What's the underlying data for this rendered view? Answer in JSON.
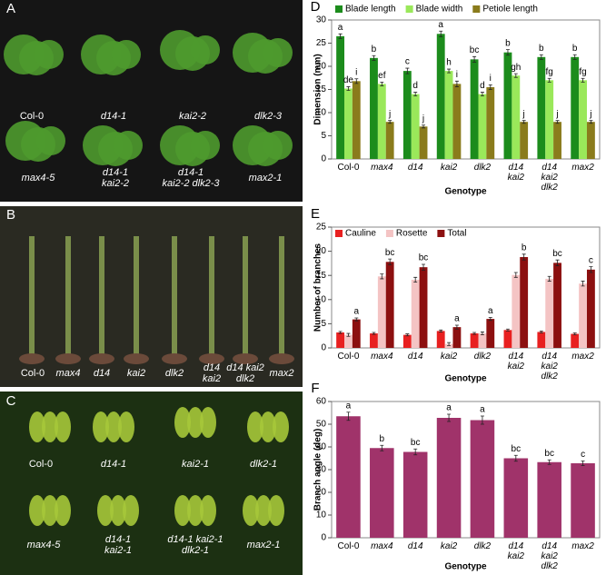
{
  "photos": [
    {
      "letter": "A",
      "labels": [
        "Col-0",
        "d14-1",
        "kai2-2",
        "dlk2-3",
        "max4-5",
        "d14-1\nkai2-2",
        "d14-1\nkai2-2 dlk2-3",
        "max2-1"
      ]
    },
    {
      "letter": "B",
      "labels": [
        "Col-0",
        "max4",
        "d14",
        "kai2",
        "dlk2",
        "d14\nkai2",
        "d14 kai2\ndlk2",
        "max2"
      ]
    },
    {
      "letter": "C",
      "labels": [
        "Col-0",
        "d14-1",
        "kai2-1",
        "dlk2-1",
        "max4-5",
        "d14-1\nkai2-1",
        "d14-1 kai2-1\ndlk2-1",
        "max2-1"
      ]
    }
  ],
  "chart_data": [
    {
      "type": "bar",
      "panel": "D",
      "ylabel": "Dimension (mm)",
      "xlabel": "Genotype",
      "categories": [
        "Col-0",
        "max4",
        "d14",
        "kai2",
        "dlk2",
        "d14\nkai2",
        "d14\nkai2\ndlk2",
        "max2"
      ],
      "ylim": [
        0,
        30
      ],
      "yticks": [
        0,
        5,
        10,
        15,
        20,
        25,
        30
      ],
      "grid": false,
      "series": [
        {
          "name": "Blade length",
          "color": "#1c8c1c",
          "values": [
            26.5,
            21.8,
            19.0,
            27.0,
            21.5,
            23.0,
            22.0,
            22.0
          ],
          "errors": [
            0.5,
            0.5,
            0.6,
            0.6,
            0.6,
            0.6,
            0.5,
            0.5
          ],
          "letters": [
            "a",
            "b",
            "c",
            "a",
            "bc",
            "b",
            "b",
            "b"
          ]
        },
        {
          "name": "Blade width",
          "color": "#9ae85a",
          "values": [
            15.2,
            16.2,
            14.0,
            19.0,
            14.0,
            18.0,
            17.0,
            17.0
          ],
          "errors": [
            0.4,
            0.4,
            0.4,
            0.4,
            0.4,
            0.4,
            0.4,
            0.4
          ],
          "letters": [
            "de",
            "ef",
            "d",
            "h",
            "d",
            "gh",
            "fg",
            "fg"
          ]
        },
        {
          "name": "Petiole length",
          "color": "#8a7b1c",
          "values": [
            16.8,
            8.0,
            7.0,
            16.2,
            15.5,
            8.0,
            8.0,
            8.0
          ],
          "errors": [
            0.5,
            0.3,
            0.3,
            0.6,
            0.5,
            0.3,
            0.3,
            0.3
          ],
          "letters": [
            "i",
            "j",
            "j",
            "i",
            "i",
            "j",
            "j",
            "j"
          ]
        }
      ]
    },
    {
      "type": "bar",
      "panel": "E",
      "ylabel": "Number of branches",
      "xlabel": "Genotype",
      "categories": [
        "Col-0",
        "max4",
        "d14",
        "kai2",
        "dlk2",
        "d14\nkai2",
        "d14\nkai2\ndlk2",
        "max2"
      ],
      "ylim": [
        0,
        25
      ],
      "yticks": [
        0,
        5,
        10,
        15,
        20,
        25
      ],
      "grid": false,
      "series": [
        {
          "name": "Cauline",
          "color": "#e82020",
          "values": [
            3.2,
            3.0,
            2.7,
            3.5,
            3.0,
            3.7,
            3.3,
            2.9
          ],
          "errors": [
            0.2,
            0.2,
            0.2,
            0.2,
            0.2,
            0.2,
            0.2,
            0.2
          ]
        },
        {
          "name": "Rosette",
          "color": "#f4c4c4",
          "values": [
            2.7,
            14.8,
            14.1,
            0.8,
            3.0,
            15.1,
            14.3,
            13.3
          ],
          "errors": [
            0.3,
            0.5,
            0.5,
            0.3,
            0.3,
            0.5,
            0.5,
            0.5
          ]
        },
        {
          "name": "Total",
          "color": "#8c1010",
          "values": [
            5.9,
            17.8,
            16.7,
            4.3,
            6.0,
            18.8,
            17.6,
            16.2
          ],
          "errors": [
            0.3,
            0.6,
            0.6,
            0.4,
            0.3,
            0.6,
            0.6,
            0.6
          ],
          "letters": [
            "a",
            "bc",
            "bc",
            "a",
            "a",
            "b",
            "bc",
            "c"
          ]
        }
      ]
    },
    {
      "type": "bar",
      "panel": "F",
      "ylabel": "Branch angle (deg)",
      "xlabel": "Genotype",
      "categories": [
        "Col-0",
        "max4",
        "d14",
        "kai2",
        "dlk2",
        "d14\nkai2",
        "d14\nkai2\ndlk2",
        "max2"
      ],
      "ylim": [
        0,
        60
      ],
      "yticks": [
        0,
        10,
        20,
        30,
        40,
        50,
        60
      ],
      "grid": false,
      "series": [
        {
          "color": "#a0336a",
          "values": [
            53.5,
            39.5,
            37.8,
            52.8,
            51.8,
            35.0,
            33.3,
            32.8
          ],
          "errors": [
            1.8,
            1.2,
            1.3,
            1.6,
            1.8,
            1.3,
            1.0,
            1.0
          ],
          "letters": [
            "a",
            "b",
            "bc",
            "a",
            "a",
            "bc",
            "bc",
            "c"
          ]
        }
      ]
    }
  ]
}
